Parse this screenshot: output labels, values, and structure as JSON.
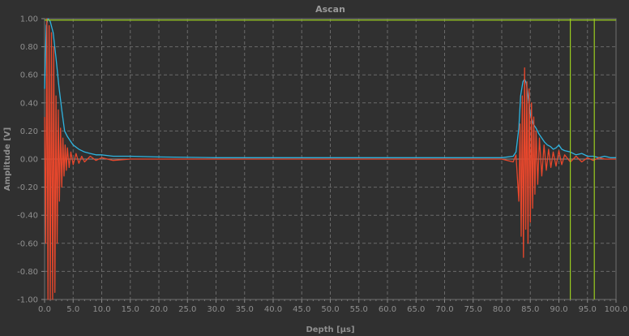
{
  "chart_data": {
    "type": "line",
    "title": "Ascan",
    "xlabel": "Depth [µs]",
    "ylabel": "Amplitude [V]",
    "xlim": [
      0,
      100
    ],
    "ylim": [
      -1.0,
      1.0
    ],
    "x_ticks": [
      "0.0",
      "5.0",
      "10.0",
      "15.0",
      "20.0",
      "25.0",
      "30.0",
      "35.0",
      "40.0",
      "45.0",
      "50.0",
      "55.0",
      "60.0",
      "65.0",
      "70.0",
      "75.0",
      "80.0",
      "85.0",
      "90.0",
      "95.0",
      "100.0"
    ],
    "y_ticks": [
      "1.00",
      "0.80",
      "0.60",
      "0.40",
      "0.20",
      "0.00",
      "-0.20",
      "-0.40",
      "-0.60",
      "-0.80",
      "-1.00"
    ],
    "grid": true,
    "colors": {
      "background": "#303030",
      "grid": "#6a6a6a",
      "envelope": "#2fb4e0",
      "signal": "#e8472c",
      "gate": "#9acd1f"
    },
    "series": [
      {
        "role": "envelope",
        "x": [
          0,
          0.3,
          0.6,
          1.0,
          1.5,
          2.0,
          2.5,
          3.0,
          3.5,
          4.0,
          4.5,
          5.0,
          6.0,
          7.0,
          8.0,
          9.0,
          10.0,
          12.0,
          15.0,
          20.0,
          30.0,
          40.0,
          50.0,
          60.0,
          70.0,
          80.0,
          82.0,
          82.5,
          83.0,
          83.3,
          83.7,
          84.0,
          84.3,
          84.7,
          85.0,
          85.5,
          86.0,
          86.5,
          87.0,
          87.5,
          88.0,
          88.5,
          89.0,
          89.5,
          90.0,
          90.5,
          91.0,
          92.0,
          93.0,
          94.0,
          95.0,
          96.0,
          97.0,
          98.0,
          99.0,
          100.0
        ],
        "values": [
          0.5,
          0.95,
          1.0,
          0.98,
          0.9,
          0.72,
          0.52,
          0.35,
          0.2,
          0.16,
          0.13,
          0.1,
          0.07,
          0.05,
          0.04,
          0.03,
          0.03,
          0.02,
          0.02,
          0.015,
          0.01,
          0.01,
          0.01,
          0.01,
          0.01,
          0.01,
          0.02,
          0.05,
          0.22,
          0.45,
          0.55,
          0.57,
          0.54,
          0.42,
          0.32,
          0.25,
          0.22,
          0.18,
          0.15,
          0.12,
          0.1,
          0.09,
          0.07,
          0.08,
          0.1,
          0.07,
          0.06,
          0.05,
          0.03,
          0.04,
          0.02,
          0.02,
          0.01,
          0.02,
          0.01,
          0.01
        ]
      },
      {
        "role": "signal",
        "x": [
          0,
          0.2,
          0.4,
          0.6,
          0.8,
          1.0,
          1.2,
          1.4,
          1.6,
          1.8,
          2.0,
          2.2,
          2.4,
          2.6,
          2.8,
          3.0,
          3.2,
          3.4,
          3.6,
          3.8,
          4.0,
          4.3,
          4.6,
          5.0,
          5.5,
          6.0,
          6.5,
          7.0,
          8.0,
          9.0,
          10.0,
          12.0,
          15.0,
          20.0,
          30.0,
          40.0,
          50.0,
          60.0,
          70.0,
          80.0,
          82.0,
          82.5,
          83.0,
          83.2,
          83.4,
          83.6,
          83.8,
          84.0,
          84.2,
          84.4,
          84.6,
          84.8,
          85.0,
          85.2,
          85.4,
          85.6,
          85.8,
          86.0,
          86.3,
          86.6,
          87.0,
          87.4,
          87.8,
          88.2,
          88.6,
          89.0,
          89.5,
          90.0,
          90.5,
          91.0,
          92.0,
          93.0,
          94.0,
          95.0,
          96.0,
          97.0,
          98.0,
          99.0,
          100.0
        ],
        "values": [
          0.3,
          -0.6,
          1.0,
          -1.0,
          0.95,
          -1.0,
          0.9,
          -1.0,
          0.8,
          -0.95,
          0.45,
          -0.6,
          0.35,
          -0.3,
          0.22,
          -0.2,
          0.15,
          -0.12,
          0.1,
          -0.08,
          0.08,
          -0.06,
          0.05,
          -0.04,
          0.04,
          -0.03,
          0.02,
          -0.02,
          0.02,
          -0.01,
          0.01,
          -0.01,
          0.0,
          0.0,
          0.0,
          0.0,
          0.0,
          0.0,
          0.0,
          0.0,
          -0.02,
          0.03,
          -0.3,
          0.25,
          -0.55,
          0.45,
          -0.7,
          0.65,
          -0.5,
          0.55,
          -0.6,
          0.5,
          -0.45,
          0.4,
          -0.35,
          0.3,
          -0.25,
          0.2,
          -0.18,
          0.15,
          -0.12,
          0.1,
          -0.08,
          0.07,
          -0.06,
          0.05,
          -0.05,
          0.06,
          -0.04,
          0.03,
          -0.02,
          0.02,
          -0.02,
          0.01,
          -0.01,
          0.01,
          0.0,
          0.0,
          0.0
        ]
      }
    ],
    "gates": [
      {
        "type": "horizontal",
        "value": 0.99
      },
      {
        "type": "vertical",
        "value": 92.0
      },
      {
        "type": "vertical",
        "value": 96.2
      }
    ]
  }
}
